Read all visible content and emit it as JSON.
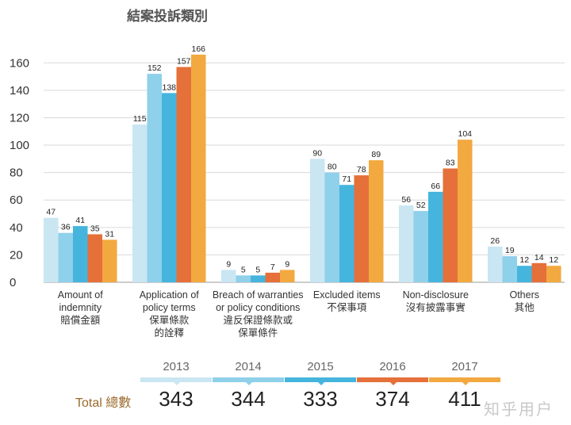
{
  "chart_data": {
    "type": "bar",
    "title": "結案投訴類別",
    "ylim": [
      0,
      170
    ],
    "yticks": [
      0,
      20,
      40,
      60,
      80,
      100,
      120,
      140,
      160
    ],
    "grid": true,
    "categories": [
      [
        "Amount of",
        "indemnity",
        "賠償金額"
      ],
      [
        "Application of",
        "policy terms",
        "保單條款",
        "的詮釋"
      ],
      [
        "Breach of warranties",
        "or policy conditions",
        "違反保證條款或",
        "保單條件"
      ],
      [
        "Excluded items",
        "不保事項"
      ],
      [
        "Non-disclosure",
        "沒有披露事實"
      ],
      [
        "Others",
        "其他"
      ]
    ],
    "series": [
      {
        "name": "2013",
        "color": "#c9e6f2",
        "values": [
          47,
          115,
          9,
          90,
          56,
          26
        ]
      },
      {
        "name": "2014",
        "color": "#8fd0ea",
        "values": [
          36,
          152,
          5,
          80,
          52,
          19
        ]
      },
      {
        "name": "2015",
        "color": "#45b5dd",
        "values": [
          41,
          138,
          5,
          71,
          66,
          12
        ]
      },
      {
        "name": "2016",
        "color": "#e5703a",
        "values": [
          35,
          157,
          7,
          78,
          83,
          14
        ]
      },
      {
        "name": "2017",
        "color": "#f2a93f",
        "values": [
          31,
          166,
          9,
          89,
          104,
          12
        ]
      }
    ]
  },
  "totals": {
    "label": "Total 總數",
    "values": [
      "343",
      "344",
      "333",
      "374",
      "411"
    ]
  },
  "watermark": "知乎用户"
}
